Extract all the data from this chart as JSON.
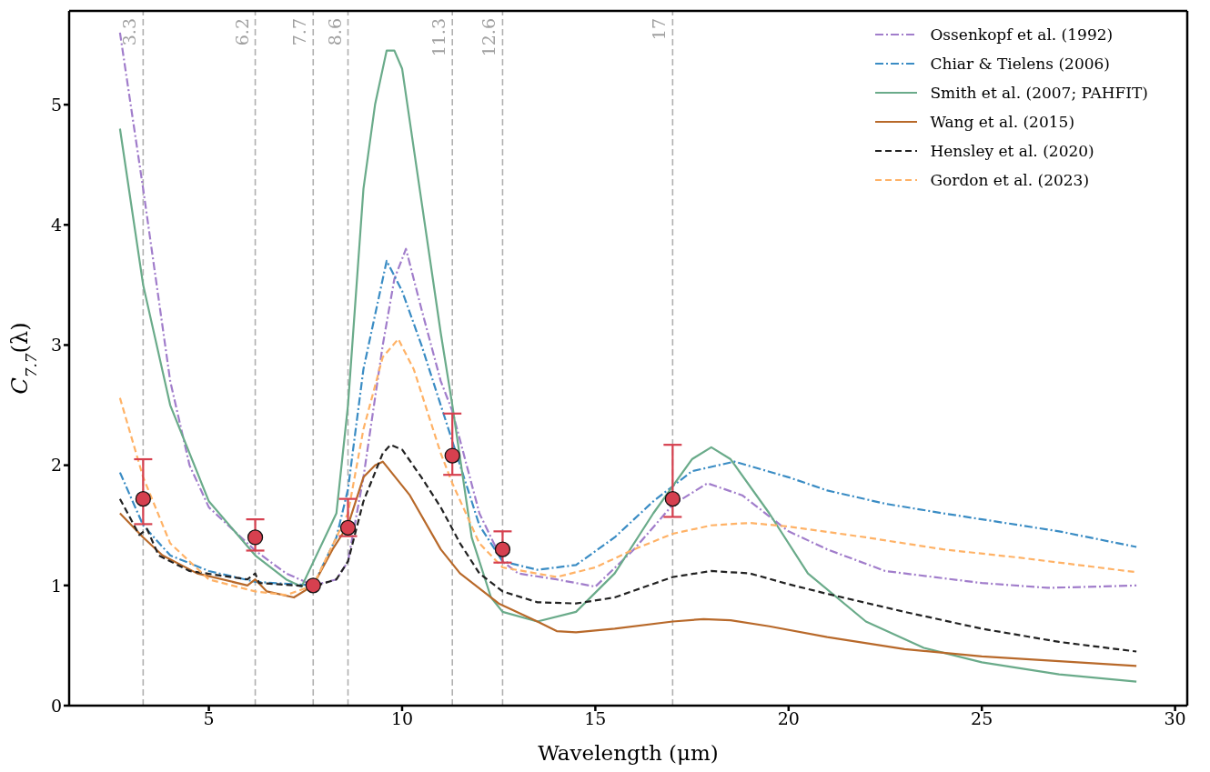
{
  "chart_data": {
    "type": "line",
    "xlabel": "Wavelength (μm)",
    "ylabel": "C$_{7.7}$(λ)",
    "xlim": [
      1.385,
      30.315
    ],
    "ylim": [
      0,
      5.78
    ],
    "xticks": [
      5,
      10,
      15,
      20,
      25,
      30
    ],
    "yticks": [
      0,
      1,
      2,
      3,
      4,
      5
    ],
    "legend": "top right",
    "marker": "none",
    "series": [
      {
        "name": "Ossenkopf et al. (1992)",
        "color": "#a17dcb",
        "line_style": "dashdot",
        "x": [
          2.7,
          3.3,
          4,
          4.5,
          5,
          6.2,
          7,
          7.7,
          8.3,
          8.6,
          9,
          9.5,
          9.8,
          10.1,
          10.5,
          11,
          11.3,
          12,
          12.6,
          13,
          14,
          15,
          16,
          17,
          17.9,
          18.8,
          20,
          21,
          22.5,
          24,
          25,
          26.7,
          28,
          29
        ],
        "values": [
          5.6,
          4.3,
          2.7,
          2.0,
          1.65,
          1.29,
          1.1,
          1.0,
          1.05,
          1.2,
          1.9,
          3.0,
          3.55,
          3.8,
          3.3,
          2.7,
          2.45,
          1.6,
          1.2,
          1.1,
          1.05,
          0.99,
          1.3,
          1.67,
          1.85,
          1.75,
          1.45,
          1.3,
          1.12,
          1.06,
          1.02,
          0.98,
          0.99,
          1.0
        ]
      },
      {
        "name": "Chiar & Tielens (2006)",
        "color": "#3a8cc4",
        "line_style": "dashdot",
        "x": [
          2.7,
          3.3,
          4,
          5,
          6.2,
          7.7,
          8.3,
          8.6,
          9,
          9.6,
          10,
          10.5,
          11,
          11.3,
          12,
          12.6,
          13.5,
          14.5,
          15.5,
          16.5,
          17.5,
          18.6,
          20,
          21,
          22.5,
          24,
          25,
          27,
          29
        ],
        "values": [
          1.94,
          1.5,
          1.25,
          1.12,
          1.03,
          1.0,
          1.4,
          1.8,
          2.8,
          3.7,
          3.45,
          3.0,
          2.5,
          2.2,
          1.5,
          1.2,
          1.13,
          1.17,
          1.4,
          1.7,
          1.95,
          2.03,
          1.9,
          1.79,
          1.68,
          1.6,
          1.55,
          1.45,
          1.32
        ]
      },
      {
        "name": "Smith et al. (2007; PAHFIT)",
        "color": "#6aab8a",
        "line_style": "solid",
        "x": [
          2.7,
          3.3,
          4,
          5,
          6.2,
          7,
          7.4,
          8.3,
          8.6,
          9,
          9.3,
          9.6,
          9.8,
          10,
          10.5,
          11,
          11.3,
          11.8,
          12.3,
          12.6,
          13.5,
          14.5,
          15.5,
          16.5,
          17.5,
          18,
          18.5,
          19.5,
          20.5,
          22,
          23.5,
          25,
          27,
          29
        ],
        "values": [
          4.8,
          3.5,
          2.5,
          1.7,
          1.25,
          1.05,
          0.99,
          1.6,
          2.5,
          4.3,
          5.0,
          5.45,
          5.45,
          5.3,
          4.2,
          3.1,
          2.5,
          1.4,
          0.9,
          0.78,
          0.7,
          0.78,
          1.1,
          1.6,
          2.05,
          2.15,
          2.05,
          1.6,
          1.1,
          0.7,
          0.48,
          0.36,
          0.26,
          0.2
        ]
      },
      {
        "name": "Wang et al. (2015)",
        "color": "#b8692a",
        "line_style": "solid",
        "x": [
          2.7,
          3.3,
          3.8,
          4.7,
          6,
          6.2,
          6.5,
          7.2,
          7.7,
          8.2,
          8.6,
          9,
          9.3,
          9.5,
          10.2,
          11,
          11.5,
          12.5,
          13.5,
          14,
          14.5,
          15.5,
          17,
          17.8,
          18.5,
          19.5,
          21,
          23,
          25,
          27,
          29
        ],
        "values": [
          1.6,
          1.4,
          1.25,
          1.1,
          1.0,
          1.05,
          0.95,
          0.9,
          1.0,
          1.3,
          1.5,
          1.9,
          2.0,
          2.03,
          1.75,
          1.3,
          1.1,
          0.85,
          0.7,
          0.62,
          0.61,
          0.64,
          0.7,
          0.72,
          0.71,
          0.66,
          0.57,
          0.47,
          0.41,
          0.37,
          0.33
        ]
      },
      {
        "name": "Hensley et al. (2020)",
        "color": "#222222",
        "line_style": "dashed",
        "x": [
          2.7,
          3.2,
          3.4,
          3.7,
          4.5,
          6,
          6.2,
          6.3,
          7.7,
          8.3,
          8.6,
          9,
          9.5,
          9.7,
          10,
          10.5,
          11,
          11.5,
          12,
          12.6,
          13.5,
          14.5,
          15.5,
          17,
          18,
          19,
          20,
          21,
          23,
          25,
          27,
          29
        ],
        "values": [
          1.72,
          1.42,
          1.47,
          1.25,
          1.12,
          1.05,
          1.1,
          1.02,
          0.99,
          1.05,
          1.2,
          1.7,
          2.1,
          2.17,
          2.13,
          1.9,
          1.65,
          1.35,
          1.1,
          0.95,
          0.86,
          0.85,
          0.9,
          1.07,
          1.12,
          1.1,
          1.01,
          0.93,
          0.78,
          0.64,
          0.53,
          0.45
        ]
      },
      {
        "name": "Gordon et al. (2023)",
        "color": "#ffb266",
        "line_style": "dashed",
        "x": [
          2.7,
          3.3,
          4,
          5,
          6.2,
          7,
          7.7,
          8.3,
          8.6,
          9,
          9.5,
          9.9,
          10.3,
          11,
          11.3,
          12,
          12.6,
          14,
          15,
          16,
          17,
          18,
          19,
          20,
          22,
          24,
          26,
          29
        ],
        "values": [
          2.56,
          1.9,
          1.35,
          1.05,
          0.95,
          0.92,
          1.0,
          1.4,
          1.6,
          2.3,
          2.9,
          3.05,
          2.8,
          2.1,
          1.85,
          1.35,
          1.15,
          1.07,
          1.15,
          1.3,
          1.43,
          1.5,
          1.52,
          1.49,
          1.4,
          1.3,
          1.23,
          1.11
        ]
      },
      {
        "type": "scatter",
        "color": "#d6404f",
        "marker": "circle",
        "x": [
          3.3,
          6.2,
          7.7,
          8.6,
          11.3,
          12.6,
          17
        ],
        "values": [
          1.72,
          1.4,
          1.0,
          1.48,
          2.08,
          1.3,
          1.72
        ],
        "errors": [
          [
            1.51,
            2.05
          ],
          [
            1.29,
            1.55
          ],
          null,
          [
            1.41,
            1.72
          ],
          [
            1.92,
            2.43
          ],
          [
            1.19,
            1.45
          ],
          [
            1.57,
            2.17
          ]
        ]
      }
    ],
    "ref_lines": [
      {
        "axis": "x",
        "value": 3.3,
        "label": "3.3",
        "color": "#b0b0b0",
        "line_style": "dashed"
      },
      {
        "axis": "x",
        "value": 6.2,
        "label": "6.2",
        "color": "#b0b0b0",
        "line_style": "dashed"
      },
      {
        "axis": "x",
        "value": 7.7,
        "label": "7.7",
        "color": "#b0b0b0",
        "line_style": "dashed"
      },
      {
        "axis": "x",
        "value": 8.6,
        "label": "8.6",
        "color": "#b0b0b0",
        "line_style": "dashed"
      },
      {
        "axis": "x",
        "value": 11.3,
        "label": "11.3",
        "color": "#b0b0b0",
        "line_style": "dashed"
      },
      {
        "axis": "x",
        "value": 12.6,
        "label": "12.6",
        "color": "#b0b0b0",
        "line_style": "dashed"
      },
      {
        "axis": "x",
        "value": 17,
        "label": "17",
        "color": "#b0b0b0",
        "line_style": "dashed"
      }
    ]
  }
}
